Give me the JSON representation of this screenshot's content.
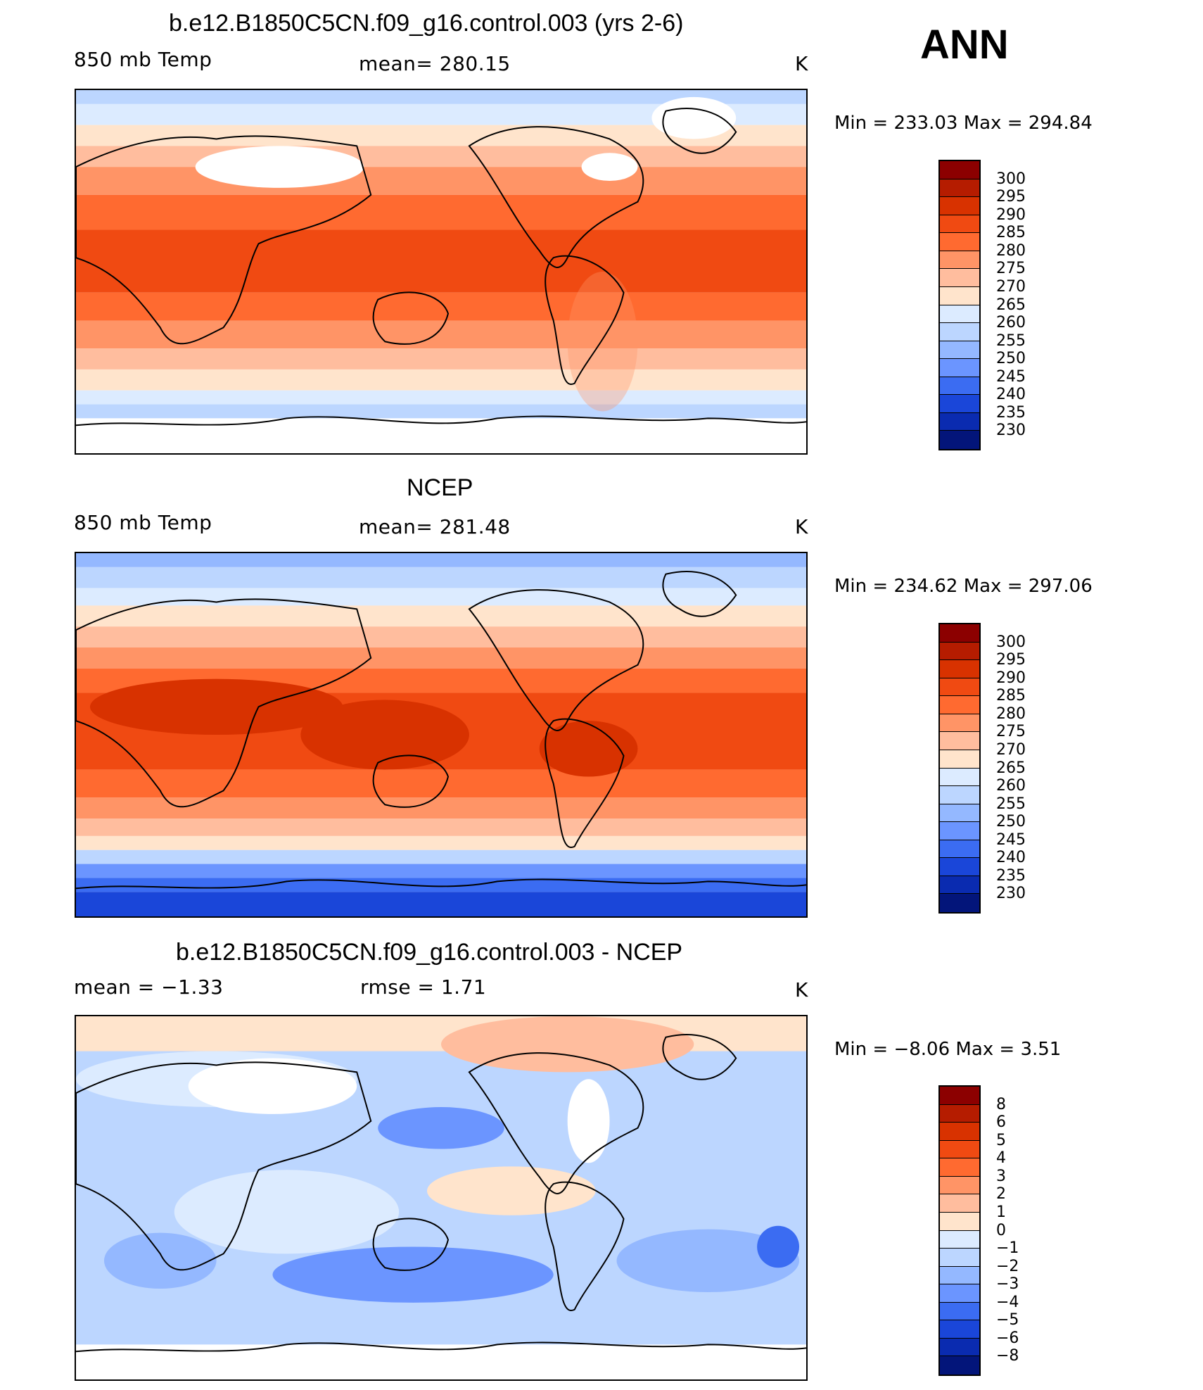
{
  "season": "ANN",
  "panels": [
    {
      "title": "b.e12.B1850C5CN.f09_g16.control.003 (yrs 2-6)",
      "left_label": "850 mb Temp",
      "center_label": "mean=  280.15",
      "units": "K",
      "minmax": "Min  =  233.03  Max  =  294.84",
      "map_kind": "model"
    },
    {
      "title": "NCEP",
      "left_label": "850 mb Temp",
      "center_label": "mean=  281.48",
      "units": "K",
      "minmax": "Min  =  234.62  Max  =  297.06",
      "map_kind": "obs"
    },
    {
      "title": "b.e12.B1850C5CN.f09_g16.control.003 - NCEP",
      "left_label": "mean  =     −1.33",
      "center_label": "rmse  =      1.71",
      "units": "K",
      "minmax": "Min  =    −8.06  Max  =      3.51",
      "map_kind": "diff"
    }
  ],
  "colorbars": [
    {
      "labels": [
        "300",
        "295",
        "290",
        "285",
        "280",
        "275",
        "270",
        "265",
        "260",
        "255",
        "250",
        "245",
        "240",
        "235",
        "230"
      ],
      "colors": [
        "#8c0000",
        "#b51c00",
        "#d83200",
        "#f04a12",
        "#ff6a30",
        "#ff9466",
        "#ffbd9e",
        "#ffe4cc",
        "#dcebff",
        "#bcd6ff",
        "#94b8ff",
        "#6b95ff",
        "#3b6cf2",
        "#1a46d9",
        "#0a2bb0",
        "#03157a"
      ]
    },
    {
      "labels": [
        "300",
        "295",
        "290",
        "285",
        "280",
        "275",
        "270",
        "265",
        "260",
        "255",
        "250",
        "245",
        "240",
        "235",
        "230"
      ],
      "colors": [
        "#8c0000",
        "#b51c00",
        "#d83200",
        "#f04a12",
        "#ff6a30",
        "#ff9466",
        "#ffbd9e",
        "#ffe4cc",
        "#dcebff",
        "#bcd6ff",
        "#94b8ff",
        "#6b95ff",
        "#3b6cf2",
        "#1a46d9",
        "#0a2bb0",
        "#03157a"
      ]
    },
    {
      "labels": [
        "8",
        "6",
        "5",
        "4",
        "3",
        "2",
        "1",
        "0",
        "−1",
        "−2",
        "−3",
        "−4",
        "−5",
        "−6",
        "−8"
      ],
      "colors": [
        "#8c0000",
        "#b51c00",
        "#d83200",
        "#f04a12",
        "#ff6a30",
        "#ff9466",
        "#ffbd9e",
        "#ffe4cc",
        "#dcebff",
        "#bcd6ff",
        "#94b8ff",
        "#6b95ff",
        "#3b6cf2",
        "#1a46d9",
        "#0a2bb0",
        "#03157a"
      ]
    }
  ]
}
